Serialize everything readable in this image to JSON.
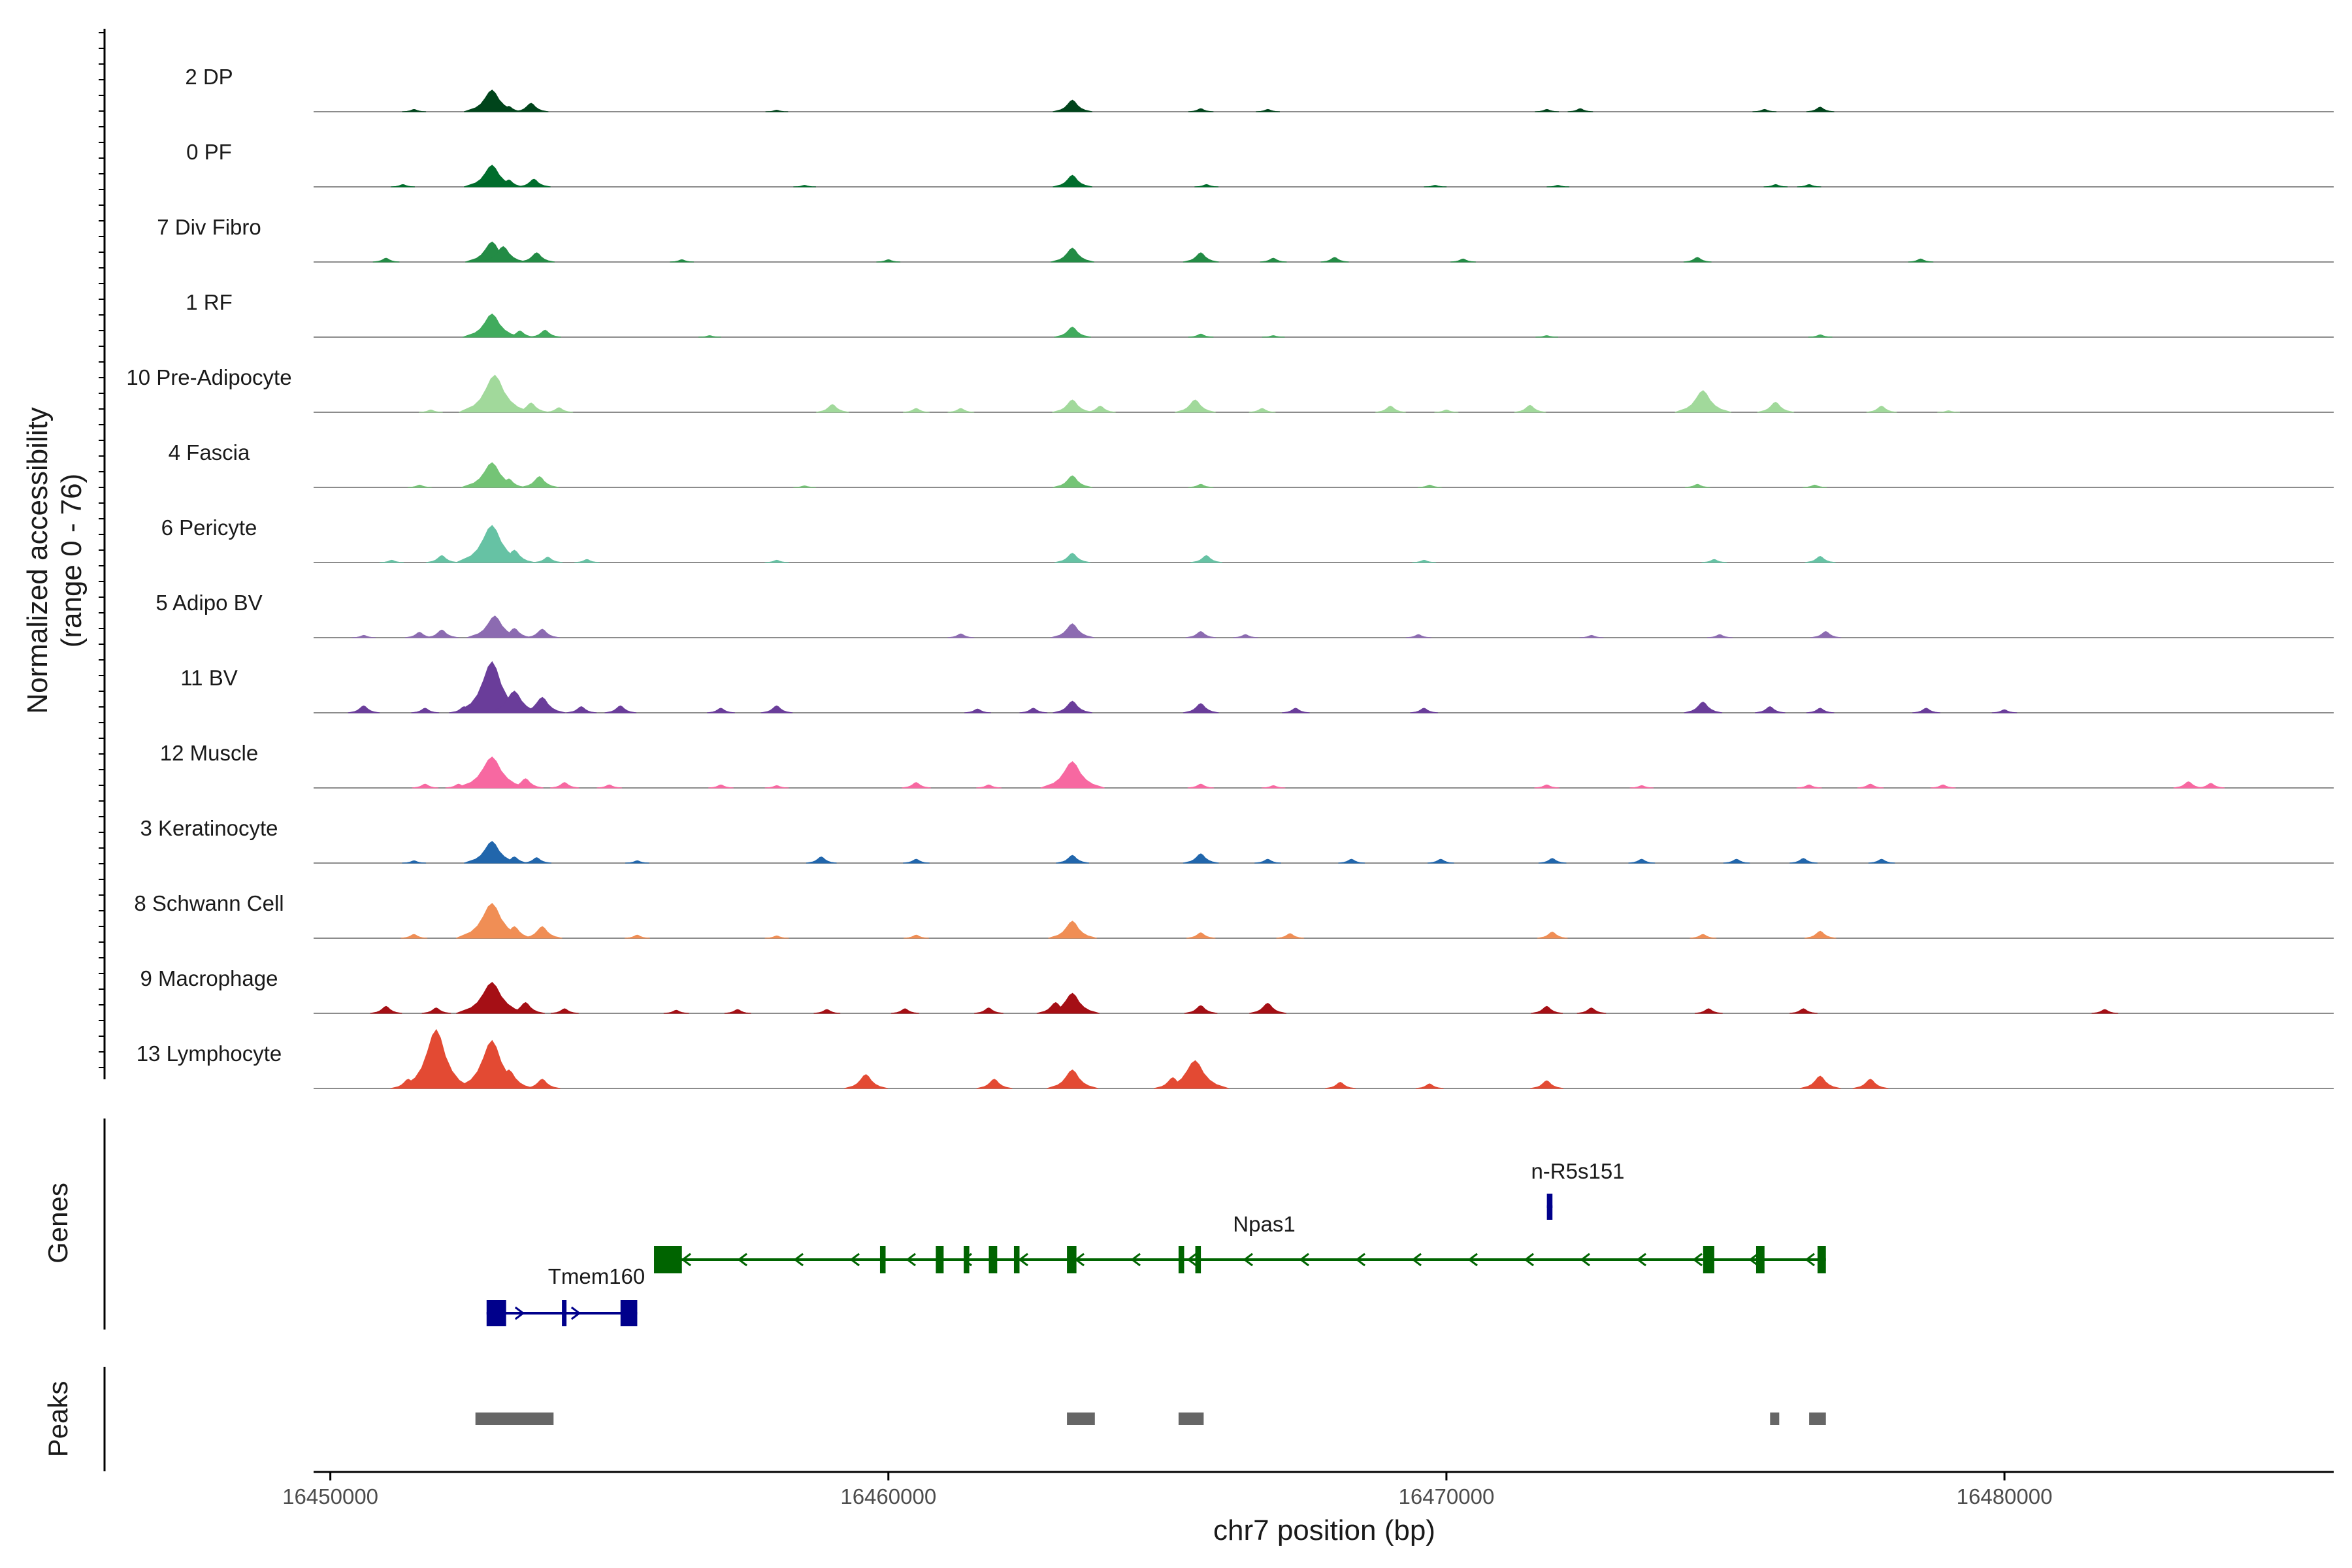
{
  "chart_data": {
    "type": "area",
    "title": "",
    "chromosome": "chr7",
    "xlabel": "chr7 position (bp)",
    "ylabel": "Normalized accessibility",
    "ylabel_range": "(range 0 - 76)",
    "xlim": [
      16449700,
      16485900
    ],
    "ylim": [
      0,
      76
    ],
    "x_ticks": [
      {
        "value": 16450000,
        "label": "16450000"
      },
      {
        "value": 16460000,
        "label": "16460000"
      },
      {
        "value": 16470000,
        "label": "16470000"
      },
      {
        "value": 16480000,
        "label": "16480000"
      }
    ],
    "tracks": [
      {
        "name": "2 DP",
        "color": "#00441b",
        "peaks": [
          [
            16451500,
            3
          ],
          [
            16452900,
            28
          ],
          [
            16453200,
            7
          ],
          [
            16453600,
            11
          ],
          [
            16458000,
            2
          ],
          [
            16463300,
            15
          ],
          [
            16465600,
            4
          ],
          [
            16466800,
            3
          ],
          [
            16471800,
            3
          ],
          [
            16472400,
            4
          ],
          [
            16475700,
            3
          ],
          [
            16476700,
            6
          ]
        ]
      },
      {
        "name": "0 PF",
        "color": "#006d2c",
        "peaks": [
          [
            16451300,
            3
          ],
          [
            16452900,
            28
          ],
          [
            16453200,
            9
          ],
          [
            16453650,
            10
          ],
          [
            16458500,
            2
          ],
          [
            16463300,
            15
          ],
          [
            16465700,
            3
          ],
          [
            16469800,
            2
          ],
          [
            16472000,
            2
          ],
          [
            16475900,
            3
          ],
          [
            16476500,
            3
          ]
        ]
      },
      {
        "name": "7 Div Fibro",
        "color": "#238b45",
        "peaks": [
          [
            16451000,
            5
          ],
          [
            16452900,
            26
          ],
          [
            16453100,
            20
          ],
          [
            16453700,
            12
          ],
          [
            16456300,
            3
          ],
          [
            16460000,
            3
          ],
          [
            16463300,
            18
          ],
          [
            16465600,
            12
          ],
          [
            16466900,
            5
          ],
          [
            16468000,
            6
          ],
          [
            16470300,
            4
          ],
          [
            16474500,
            6
          ],
          [
            16478500,
            4
          ]
        ]
      },
      {
        "name": "1 RF",
        "color": "#41ab5d",
        "peaks": [
          [
            16452900,
            30
          ],
          [
            16453400,
            8
          ],
          [
            16453850,
            9
          ],
          [
            16456800,
            2
          ],
          [
            16463300,
            13
          ],
          [
            16465600,
            4
          ],
          [
            16466900,
            2
          ],
          [
            16471800,
            2
          ],
          [
            16476700,
            3
          ]
        ]
      },
      {
        "name": "10 Pre-Adipocyte",
        "color": "#a1d99b",
        "peaks": [
          [
            16451800,
            3
          ],
          [
            16452700,
            8
          ],
          [
            16452950,
            48
          ],
          [
            16453600,
            12
          ],
          [
            16454100,
            6
          ],
          [
            16459000,
            10
          ],
          [
            16460500,
            5
          ],
          [
            16461300,
            5
          ],
          [
            16463300,
            16
          ],
          [
            16463800,
            8
          ],
          [
            16465500,
            16
          ],
          [
            16466700,
            5
          ],
          [
            16469000,
            8
          ],
          [
            16470000,
            3
          ],
          [
            16471500,
            9
          ],
          [
            16474600,
            28
          ],
          [
            16475900,
            13
          ],
          [
            16477800,
            8
          ],
          [
            16479000,
            2
          ]
        ]
      },
      {
        "name": "4 Fascia",
        "color": "#74c476",
        "peaks": [
          [
            16451600,
            3
          ],
          [
            16452900,
            32
          ],
          [
            16453200,
            11
          ],
          [
            16453750,
            14
          ],
          [
            16458500,
            2
          ],
          [
            16463300,
            15
          ],
          [
            16465600,
            4
          ],
          [
            16469700,
            3
          ],
          [
            16474500,
            4
          ],
          [
            16476600,
            3
          ]
        ]
      },
      {
        "name": "6 Pericyte",
        "color": "#66c2a4",
        "peaks": [
          [
            16451100,
            3
          ],
          [
            16452000,
            9
          ],
          [
            16452900,
            48
          ],
          [
            16453300,
            16
          ],
          [
            16453900,
            7
          ],
          [
            16454600,
            4
          ],
          [
            16458000,
            3
          ],
          [
            16463300,
            12
          ],
          [
            16465700,
            9
          ],
          [
            16469600,
            3
          ],
          [
            16474800,
            4
          ],
          [
            16476700,
            8
          ]
        ]
      },
      {
        "name": "5 Adipo BV",
        "color": "#8c6bb1",
        "peaks": [
          [
            16450600,
            3
          ],
          [
            16451600,
            7
          ],
          [
            16452000,
            10
          ],
          [
            16452950,
            28
          ],
          [
            16453300,
            12
          ],
          [
            16453800,
            11
          ],
          [
            16461300,
            5
          ],
          [
            16463300,
            18
          ],
          [
            16465600,
            8
          ],
          [
            16466400,
            4
          ],
          [
            16469500,
            4
          ],
          [
            16472600,
            3
          ],
          [
            16474900,
            4
          ],
          [
            16476800,
            8
          ]
        ]
      },
      {
        "name": "11 BV",
        "color": "#6a3d9a",
        "peaks": [
          [
            16450600,
            9
          ],
          [
            16451700,
            6
          ],
          [
            16452400,
            8
          ],
          [
            16452900,
            66
          ],
          [
            16453300,
            28
          ],
          [
            16453800,
            20
          ],
          [
            16454500,
            8
          ],
          [
            16455200,
            9
          ],
          [
            16457000,
            6
          ],
          [
            16458000,
            9
          ],
          [
            16461600,
            5
          ],
          [
            16462600,
            6
          ],
          [
            16463300,
            15
          ],
          [
            16465600,
            12
          ],
          [
            16467300,
            6
          ],
          [
            16469600,
            6
          ],
          [
            16474600,
            14
          ],
          [
            16475800,
            8
          ],
          [
            16476700,
            6
          ],
          [
            16478600,
            6
          ],
          [
            16480000,
            4
          ]
        ]
      },
      {
        "name": "12 Muscle",
        "color": "#f768a1",
        "peaks": [
          [
            16451700,
            5
          ],
          [
            16452300,
            5
          ],
          [
            16452900,
            40
          ],
          [
            16453500,
            12
          ],
          [
            16454200,
            7
          ],
          [
            16455000,
            4
          ],
          [
            16457000,
            4
          ],
          [
            16458000,
            3
          ],
          [
            16460500,
            7
          ],
          [
            16461800,
            4
          ],
          [
            16463300,
            34
          ],
          [
            16465600,
            5
          ],
          [
            16466900,
            3
          ],
          [
            16471800,
            4
          ],
          [
            16473500,
            3
          ],
          [
            16476500,
            4
          ],
          [
            16477600,
            5
          ],
          [
            16478900,
            4
          ],
          [
            16483300,
            8
          ],
          [
            16483700,
            6
          ]
        ]
      },
      {
        "name": "3 Keratinocyte",
        "color": "#2166ac",
        "peaks": [
          [
            16451500,
            3
          ],
          [
            16452900,
            28
          ],
          [
            16453300,
            8
          ],
          [
            16453700,
            7
          ],
          [
            16455500,
            3
          ],
          [
            16458800,
            8
          ],
          [
            16460500,
            5
          ],
          [
            16463300,
            10
          ],
          [
            16465600,
            12
          ],
          [
            16466800,
            5
          ],
          [
            16468300,
            5
          ],
          [
            16469900,
            5
          ],
          [
            16471900,
            6
          ],
          [
            16473500,
            5
          ],
          [
            16475200,
            5
          ],
          [
            16476400,
            6
          ],
          [
            16477800,
            5
          ]
        ]
      },
      {
        "name": "8 Schwann Cell",
        "color": "#f08e55",
        "peaks": [
          [
            16451500,
            5
          ],
          [
            16452900,
            45
          ],
          [
            16453300,
            15
          ],
          [
            16453800,
            15
          ],
          [
            16455500,
            4
          ],
          [
            16458000,
            3
          ],
          [
            16460500,
            4
          ],
          [
            16463300,
            22
          ],
          [
            16465600,
            7
          ],
          [
            16467200,
            6
          ],
          [
            16471900,
            8
          ],
          [
            16474600,
            5
          ],
          [
            16476700,
            9
          ]
        ]
      },
      {
        "name": "9 Macrophage",
        "color": "#a50f15",
        "peaks": [
          [
            16451000,
            9
          ],
          [
            16451900,
            7
          ],
          [
            16452900,
            40
          ],
          [
            16453500,
            14
          ],
          [
            16454200,
            6
          ],
          [
            16456200,
            4
          ],
          [
            16457300,
            5
          ],
          [
            16458900,
            5
          ],
          [
            16460300,
            6
          ],
          [
            16461800,
            7
          ],
          [
            16463000,
            14
          ],
          [
            16463300,
            26
          ],
          [
            16465600,
            10
          ],
          [
            16466800,
            13
          ],
          [
            16471800,
            9
          ],
          [
            16472600,
            7
          ],
          [
            16474700,
            6
          ],
          [
            16476400,
            6
          ],
          [
            16481800,
            5
          ]
        ]
      },
      {
        "name": "13 Lymphocyte",
        "color": "#e34a33",
        "peaks": [
          [
            16451400,
            12
          ],
          [
            16451900,
            76
          ],
          [
            16452300,
            10
          ],
          [
            16452900,
            62
          ],
          [
            16453200,
            24
          ],
          [
            16453800,
            12
          ],
          [
            16459600,
            18
          ],
          [
            16461900,
            12
          ],
          [
            16463300,
            24
          ],
          [
            16465100,
            14
          ],
          [
            16465500,
            36
          ],
          [
            16468100,
            8
          ],
          [
            16469700,
            6
          ],
          [
            16471800,
            10
          ],
          [
            16476700,
            16
          ],
          [
            16477600,
            12
          ]
        ]
      }
    ],
    "genes": [
      {
        "name": "Npas1",
        "strand": "-",
        "start": 16455800,
        "end": 16476800,
        "color": "#006400",
        "exons": [
          [
            16455800,
            16456300
          ],
          [
            16459850,
            16459950
          ],
          [
            16460850,
            16460990
          ],
          [
            16461350,
            16461450
          ],
          [
            16461800,
            16461950
          ],
          [
            16462250,
            16462350
          ],
          [
            16463200,
            16463370
          ],
          [
            16465200,
            16465300
          ],
          [
            16465500,
            16465600
          ],
          [
            16474600,
            16474800
          ],
          [
            16475550,
            16475700
          ],
          [
            16476650,
            16476800
          ]
        ]
      },
      {
        "name": "Tmem160",
        "strand": "+",
        "start": 16452800,
        "end": 16455500,
        "color": "#00008b",
        "exons": [
          [
            16452800,
            16453150
          ],
          [
            16454150,
            16454230
          ],
          [
            16455200,
            16455500
          ]
        ]
      },
      {
        "name": "n-R5s151",
        "strand": "+",
        "start": 16471800,
        "end": 16471900,
        "color": "#00008b",
        "exons": [
          [
            16471800,
            16471900
          ]
        ]
      }
    ],
    "peaks_track": [
      [
        16452600,
        16454000
      ],
      [
        16463200,
        16463700
      ],
      [
        16465200,
        16465650
      ],
      [
        16475800,
        16475950
      ],
      [
        16476500,
        16476800
      ]
    ],
    "panel_labels": {
      "genes": "Genes",
      "peaks": "Peaks"
    }
  }
}
